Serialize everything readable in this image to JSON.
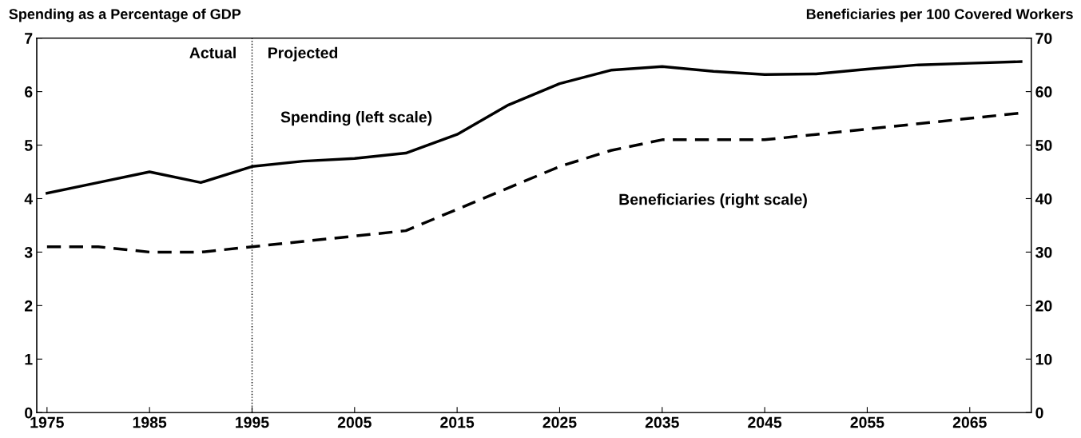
{
  "chart_data": {
    "type": "line",
    "ylabel": "Spending as a Percentage of GDP",
    "y2label": "Beneficiaries per 100 Covered Workers",
    "x": [
      1975,
      1980,
      1985,
      1990,
      1995,
      2000,
      2005,
      2010,
      2015,
      2020,
      2025,
      2030,
      2035,
      2040,
      2045,
      2050,
      2055,
      2060,
      2065,
      2070
    ],
    "series": [
      {
        "name": "Spending (left scale)",
        "color": "#000000",
        "line_style": "solid",
        "values": [
          4.1,
          4.3,
          4.5,
          4.3,
          4.6,
          4.7,
          4.75,
          4.85,
          5.2,
          5.75,
          6.15,
          6.4,
          6.47,
          6.38,
          6.32,
          6.33,
          6.42,
          6.5,
          6.53,
          6.56
        ]
      },
      {
        "name": "Beneficiaries (right scale)",
        "color": "#000000",
        "line_style": "dashed",
        "axis": "y2",
        "values": [
          31,
          31,
          30,
          30,
          31,
          32,
          33,
          34,
          38,
          42,
          46,
          49,
          51,
          51,
          51,
          52,
          53,
          54,
          55,
          56
        ]
      }
    ],
    "xlim": [
      1974,
      2071
    ],
    "xticks": [
      1975,
      1985,
      1995,
      2005,
      2015,
      2025,
      2035,
      2045,
      2055,
      2065
    ],
    "ylim": [
      0,
      7
    ],
    "yticks": [
      0,
      1,
      2,
      3,
      4,
      5,
      6,
      7
    ],
    "y2lim": [
      0,
      70
    ],
    "y2ticks": [
      0,
      10,
      20,
      30,
      40,
      50,
      60,
      70
    ],
    "ref_lines": [
      {
        "axis": "x",
        "value": 1995,
        "color": "#000000",
        "line_style": "dotted"
      }
    ],
    "annotations": [
      "Actual",
      "Projected"
    ],
    "grid": false,
    "legend": false
  }
}
